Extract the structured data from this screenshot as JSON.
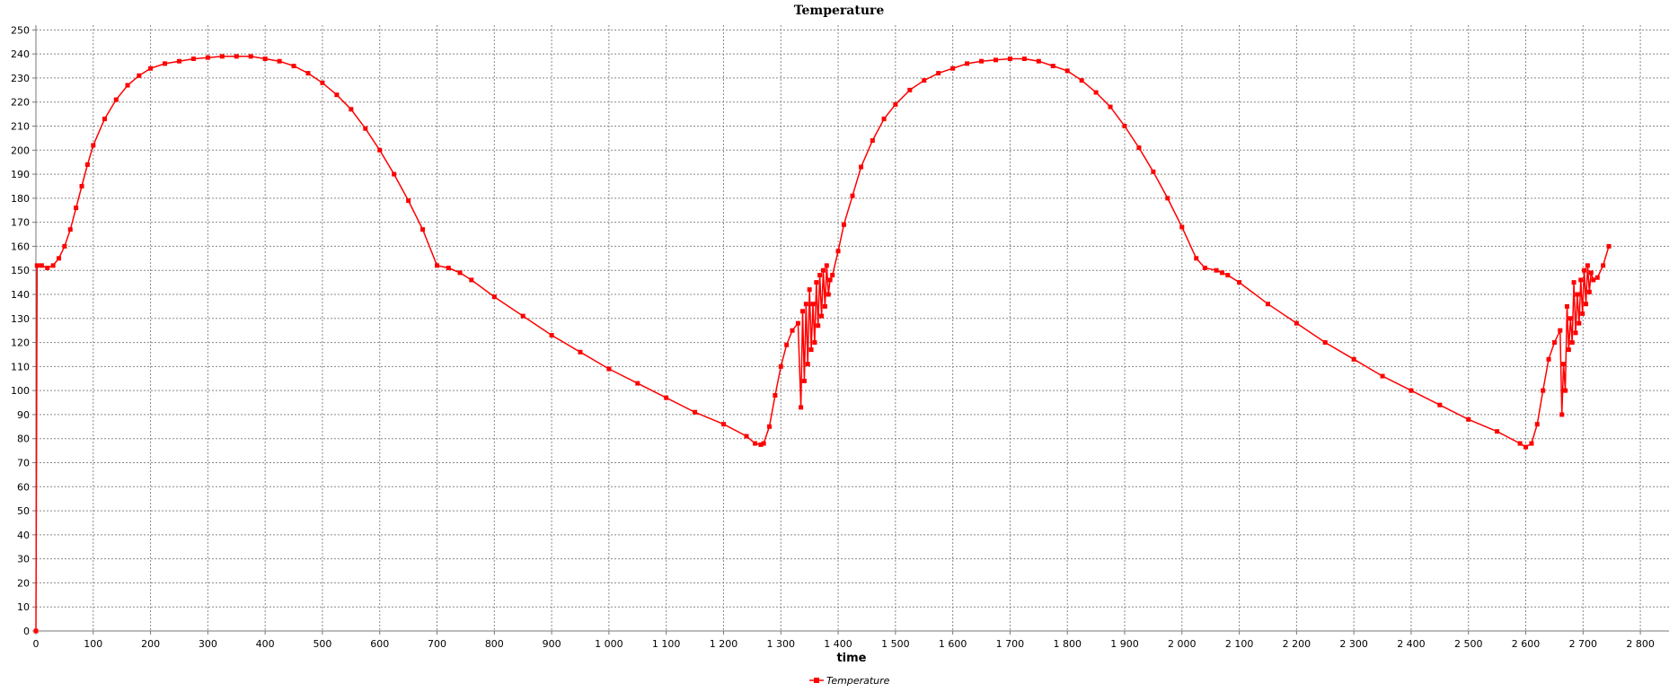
{
  "chart_data": {
    "type": "line",
    "title": "Temperature",
    "xlabel": "time",
    "ylabel": "",
    "xlim": [
      0,
      2850
    ],
    "ylim": [
      0,
      252
    ],
    "grid": true,
    "legend_position": "bottom-center",
    "x_ticks": [
      0,
      100,
      200,
      300,
      400,
      500,
      600,
      700,
      800,
      900,
      1000,
      1100,
      1200,
      1300,
      1400,
      1500,
      1600,
      1700,
      1800,
      1900,
      2000,
      2100,
      2200,
      2300,
      2400,
      2500,
      2600,
      2700,
      2800
    ],
    "x_tick_labels": [
      "0",
      "100",
      "200",
      "300",
      "400",
      "500",
      "600",
      "700",
      "800",
      "900",
      "1 000",
      "1 100",
      "1 200",
      "1 300",
      "1 400",
      "1 500",
      "1 600",
      "1 700",
      "1 800",
      "1 900",
      "2 000",
      "2 100",
      "2 200",
      "2 300",
      "2 400",
      "2 500",
      "2 600",
      "2 700",
      "2 800"
    ],
    "y_ticks": [
      0,
      10,
      20,
      30,
      40,
      50,
      60,
      70,
      80,
      90,
      100,
      110,
      120,
      130,
      140,
      150,
      160,
      170,
      180,
      190,
      200,
      210,
      220,
      230,
      240,
      250
    ],
    "y_tick_labels": [
      "0",
      "10",
      "20",
      "30",
      "40",
      "50",
      "60",
      "70",
      "80",
      "90",
      "100",
      "110",
      "120",
      "130",
      "140",
      "150",
      "160",
      "170",
      "180",
      "190",
      "200",
      "210",
      "220",
      "230",
      "240",
      "250"
    ],
    "series": [
      {
        "name": "Temperature",
        "color": "#ff0000",
        "marker": "square",
        "points": [
          [
            0,
            0
          ],
          [
            2,
            152
          ],
          [
            10,
            152
          ],
          [
            20,
            151
          ],
          [
            30,
            152
          ],
          [
            40,
            155
          ],
          [
            50,
            160
          ],
          [
            60,
            167
          ],
          [
            70,
            176
          ],
          [
            80,
            185
          ],
          [
            90,
            194
          ],
          [
            100,
            202
          ],
          [
            120,
            213
          ],
          [
            140,
            221
          ],
          [
            160,
            227
          ],
          [
            180,
            231
          ],
          [
            200,
            234
          ],
          [
            225,
            236
          ],
          [
            250,
            237
          ],
          [
            275,
            238
          ],
          [
            300,
            238.5
          ],
          [
            325,
            239
          ],
          [
            350,
            239
          ],
          [
            375,
            239
          ],
          [
            400,
            238
          ],
          [
            425,
            237
          ],
          [
            450,
            235
          ],
          [
            475,
            232
          ],
          [
            500,
            228
          ],
          [
            525,
            223
          ],
          [
            550,
            217
          ],
          [
            575,
            209
          ],
          [
            600,
            200
          ],
          [
            625,
            190
          ],
          [
            650,
            179
          ],
          [
            675,
            167
          ],
          [
            700,
            152
          ],
          [
            720,
            151
          ],
          [
            740,
            149
          ],
          [
            760,
            146
          ],
          [
            800,
            139
          ],
          [
            850,
            131
          ],
          [
            900,
            123
          ],
          [
            950,
            116
          ],
          [
            1000,
            109
          ],
          [
            1050,
            103
          ],
          [
            1100,
            97
          ],
          [
            1150,
            91
          ],
          [
            1200,
            86
          ],
          [
            1240,
            81
          ],
          [
            1255,
            78
          ],
          [
            1265,
            77.5
          ],
          [
            1270,
            78
          ],
          [
            1280,
            85
          ],
          [
            1290,
            98
          ],
          [
            1300,
            110
          ],
          [
            1310,
            119
          ],
          [
            1320,
            125
          ],
          [
            1330,
            128
          ],
          [
            1335,
            93
          ],
          [
            1338,
            133
          ],
          [
            1341,
            104
          ],
          [
            1344,
            136
          ],
          [
            1347,
            111
          ],
          [
            1350,
            142
          ],
          [
            1353,
            117
          ],
          [
            1356,
            136
          ],
          [
            1359,
            120
          ],
          [
            1362,
            145
          ],
          [
            1365,
            127
          ],
          [
            1368,
            148
          ],
          [
            1371,
            131
          ],
          [
            1374,
            150
          ],
          [
            1377,
            135
          ],
          [
            1380,
            152
          ],
          [
            1383,
            140
          ],
          [
            1386,
            146
          ],
          [
            1390,
            148
          ],
          [
            1400,
            158
          ],
          [
            1410,
            169
          ],
          [
            1425,
            181
          ],
          [
            1440,
            193
          ],
          [
            1460,
            204
          ],
          [
            1480,
            213
          ],
          [
            1500,
            219
          ],
          [
            1525,
            225
          ],
          [
            1550,
            229
          ],
          [
            1575,
            232
          ],
          [
            1600,
            234
          ],
          [
            1625,
            236
          ],
          [
            1650,
            237
          ],
          [
            1675,
            237.5
          ],
          [
            1700,
            238
          ],
          [
            1725,
            238
          ],
          [
            1750,
            237
          ],
          [
            1775,
            235
          ],
          [
            1800,
            233
          ],
          [
            1825,
            229
          ],
          [
            1850,
            224
          ],
          [
            1875,
            218
          ],
          [
            1900,
            210
          ],
          [
            1925,
            201
          ],
          [
            1950,
            191
          ],
          [
            1975,
            180
          ],
          [
            2000,
            168
          ],
          [
            2025,
            155
          ],
          [
            2040,
            151
          ],
          [
            2060,
            150
          ],
          [
            2070,
            149
          ],
          [
            2080,
            148
          ],
          [
            2100,
            145
          ],
          [
            2150,
            136
          ],
          [
            2200,
            128
          ],
          [
            2250,
            120
          ],
          [
            2300,
            113
          ],
          [
            2350,
            106
          ],
          [
            2400,
            100
          ],
          [
            2450,
            94
          ],
          [
            2500,
            88
          ],
          [
            2550,
            83
          ],
          [
            2590,
            78
          ],
          [
            2600,
            76.5
          ],
          [
            2610,
            78
          ],
          [
            2620,
            86
          ],
          [
            2630,
            100
          ],
          [
            2640,
            113
          ],
          [
            2650,
            120
          ],
          [
            2660,
            125
          ],
          [
            2663,
            90
          ],
          [
            2666,
            111
          ],
          [
            2669,
            100
          ],
          [
            2672,
            135
          ],
          [
            2675,
            117
          ],
          [
            2678,
            130
          ],
          [
            2681,
            120
          ],
          [
            2684,
            145
          ],
          [
            2687,
            124
          ],
          [
            2690,
            140
          ],
          [
            2693,
            128
          ],
          [
            2696,
            146
          ],
          [
            2699,
            132
          ],
          [
            2702,
            150
          ],
          [
            2705,
            136
          ],
          [
            2708,
            152
          ],
          [
            2711,
            141
          ],
          [
            2714,
            149
          ],
          [
            2718,
            146
          ],
          [
            2725,
            147
          ],
          [
            2735,
            152
          ],
          [
            2745,
            160
          ]
        ]
      }
    ]
  }
}
